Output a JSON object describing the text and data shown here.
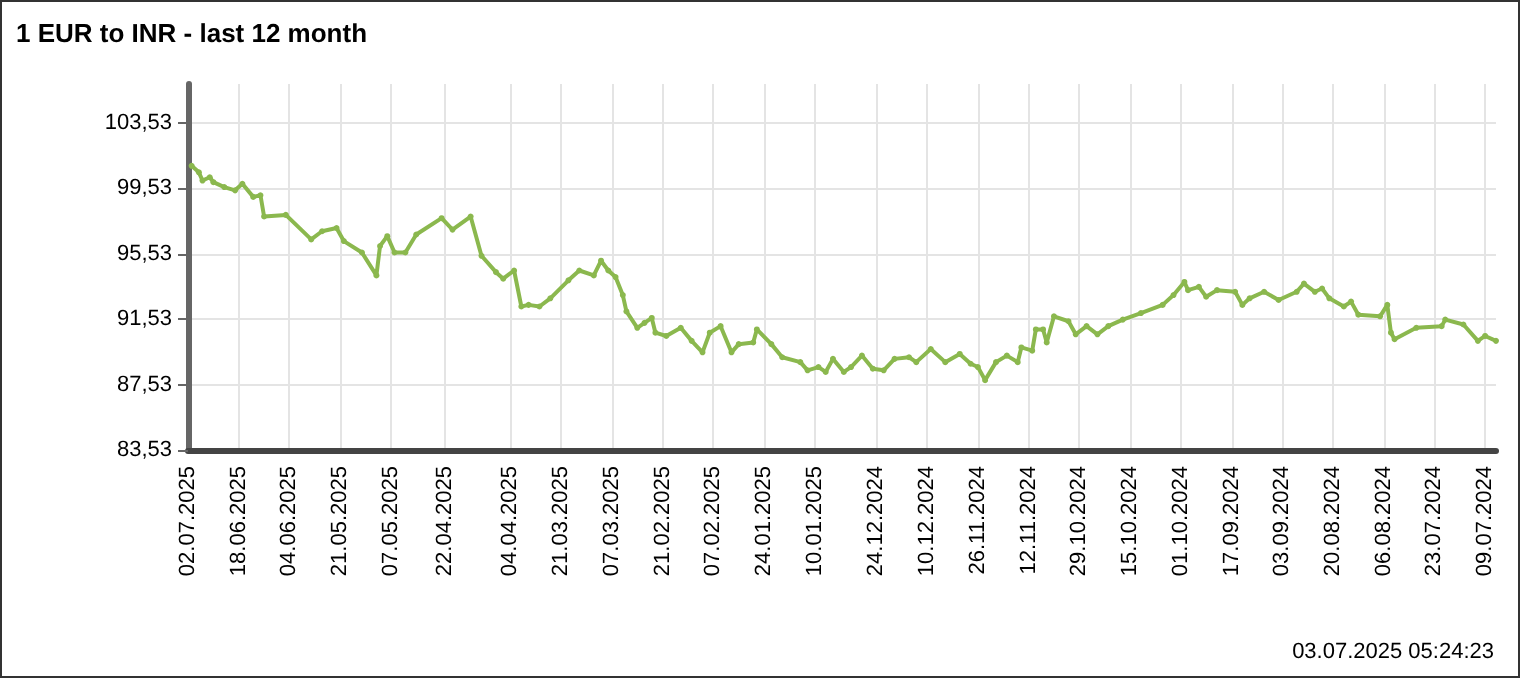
{
  "chart_data": {
    "type": "line",
    "title": "1 EUR to INR - last 12 month",
    "annotations": [
      "03.07.2025 05:24:23"
    ],
    "xlim": [
      "2025-07-02",
      "2024-07-06"
    ],
    "xticks": [
      {
        "value": "2025-07-02",
        "label": "02.07.2025"
      },
      {
        "value": "2025-06-18",
        "label": "18.06.2025"
      },
      {
        "value": "2025-06-04",
        "label": "04.06.2025"
      },
      {
        "value": "2025-05-21",
        "label": "21.05.2025"
      },
      {
        "value": "2025-05-07",
        "label": "07.05.2025"
      },
      {
        "value": "2025-04-22",
        "label": "22.04.2025"
      },
      {
        "value": "2025-04-04",
        "label": "04.04.2025"
      },
      {
        "value": "2025-03-21",
        "label": "21.03.2025"
      },
      {
        "value": "2025-03-07",
        "label": "07.03.2025"
      },
      {
        "value": "2025-02-21",
        "label": "21.02.2025"
      },
      {
        "value": "2025-02-07",
        "label": "07.02.2025"
      },
      {
        "value": "2025-01-24",
        "label": "24.01.2025"
      },
      {
        "value": "2025-01-10",
        "label": "10.01.2025"
      },
      {
        "value": "2024-12-24",
        "label": "24.12.2024"
      },
      {
        "value": "2024-12-10",
        "label": "10.12.2024"
      },
      {
        "value": "2024-11-26",
        "label": "26.11.2024"
      },
      {
        "value": "2024-11-12",
        "label": "12.11.2024"
      },
      {
        "value": "2024-10-29",
        "label": "29.10.2024"
      },
      {
        "value": "2024-10-15",
        "label": "15.10.2024"
      },
      {
        "value": "2024-10-01",
        "label": "01.10.2024"
      },
      {
        "value": "2024-09-17",
        "label": "17.09.2024"
      },
      {
        "value": "2024-09-03",
        "label": "03.09.2024"
      },
      {
        "value": "2024-08-20",
        "label": "20.08.2024"
      },
      {
        "value": "2024-08-06",
        "label": "06.08.2024"
      },
      {
        "value": "2024-07-23",
        "label": "23.07.2024"
      },
      {
        "value": "2024-07-09",
        "label": "09.07.2024"
      }
    ],
    "ylim": [
      83.53,
      105.9
    ],
    "yticks": [
      {
        "value": 83.53,
        "label": "83,53"
      },
      {
        "value": 87.53,
        "label": "87,53"
      },
      {
        "value": 91.53,
        "label": "91,53"
      },
      {
        "value": 95.53,
        "label": "95,53"
      },
      {
        "value": 99.53,
        "label": "99,53"
      },
      {
        "value": 103.53,
        "label": "103,53"
      }
    ],
    "grid": true,
    "marker": "circle",
    "line_style": "solid",
    "x": [
      "2025-07-01",
      "2025-06-29",
      "2025-06-28",
      "2025-06-26",
      "2025-06-25",
      "2025-06-22",
      "2025-06-19",
      "2025-06-17",
      "2025-06-14",
      "2025-06-12",
      "2025-06-11",
      "2025-06-05",
      "2025-05-29",
      "2025-05-26",
      "2025-05-22",
      "2025-05-20",
      "2025-05-15",
      "2025-05-11",
      "2025-05-10",
      "2025-05-08",
      "2025-05-06",
      "2025-05-03",
      "2025-04-30",
      "2025-04-23",
      "2025-04-20",
      "2025-04-15",
      "2025-04-12",
      "2025-04-08",
      "2025-04-06",
      "2025-04-03",
      "2025-04-01",
      "2025-03-30",
      "2025-03-27",
      "2025-03-24",
      "2025-03-19",
      "2025-03-16",
      "2025-03-12",
      "2025-03-10",
      "2025-03-08",
      "2025-03-06",
      "2025-03-04",
      "2025-03-03",
      "2025-02-28",
      "2025-02-26",
      "2025-02-24",
      "2025-02-23",
      "2025-02-20",
      "2025-02-16",
      "2025-02-13",
      "2025-02-10",
      "2025-02-08",
      "2025-02-05",
      "2025-02-02",
      "2025-01-31",
      "2025-01-27",
      "2025-01-26",
      "2025-01-22",
      "2025-01-19",
      "2025-01-14",
      "2025-01-12",
      "2025-01-09",
      "2025-01-07",
      "2025-01-05",
      "2025-01-02",
      "2024-12-31",
      "2024-12-28",
      "2024-12-25",
      "2024-12-22",
      "2024-12-19",
      "2024-12-15",
      "2024-12-13",
      "2024-12-09",
      "2024-12-05",
      "2024-12-01",
      "2024-11-28",
      "2024-11-26",
      "2024-11-24",
      "2024-11-21",
      "2024-11-18",
      "2024-11-15",
      "2024-11-14",
      "2024-11-11",
      "2024-11-10",
      "2024-11-08",
      "2024-11-07",
      "2024-11-05",
      "2024-11-01",
      "2024-10-30",
      "2024-10-27",
      "2024-10-24",
      "2024-10-21",
      "2024-10-17",
      "2024-10-12",
      "2024-10-06",
      "2024-10-03",
      "2024-09-30",
      "2024-09-29",
      "2024-09-26",
      "2024-09-24",
      "2024-09-21",
      "2024-09-16",
      "2024-09-14",
      "2024-09-12",
      "2024-09-08",
      "2024-09-04",
      "2024-08-30",
      "2024-08-28",
      "2024-08-25",
      "2024-08-23",
      "2024-08-21",
      "2024-08-17",
      "2024-08-15",
      "2024-08-13",
      "2024-08-07",
      "2024-08-05",
      "2024-08-04",
      "2024-08-03",
      "2024-07-28",
      "2024-07-21",
      "2024-07-20",
      "2024-07-15",
      "2024-07-11",
      "2024-07-09",
      "2024-07-06"
    ],
    "series": [
      {
        "color": "#8bb84e",
        "values": [
          100.9,
          100.5,
          100.0,
          100.2,
          99.9,
          99.6,
          99.4,
          99.8,
          99.0,
          99.1,
          97.8,
          97.9,
          96.4,
          96.9,
          97.1,
          96.3,
          95.6,
          94.2,
          96.0,
          96.6,
          95.6,
          95.6,
          96.7,
          97.7,
          97.0,
          97.8,
          95.4,
          94.4,
          94.0,
          94.5,
          92.3,
          92.4,
          92.3,
          92.8,
          93.9,
          94.5,
          94.2,
          95.1,
          94.5,
          94.1,
          93.0,
          92.0,
          91.0,
          91.3,
          91.6,
          90.7,
          90.5,
          91.0,
          90.2,
          89.5,
          90.7,
          91.1,
          89.5,
          90.0,
          90.1,
          90.9,
          90.0,
          89.2,
          88.9,
          88.4,
          88.6,
          88.3,
          89.1,
          88.3,
          88.6,
          89.3,
          88.5,
          88.4,
          89.1,
          89.2,
          88.9,
          89.7,
          88.9,
          89.4,
          88.8,
          88.6,
          87.8,
          88.9,
          89.3,
          88.9,
          89.8,
          89.6,
          90.9,
          90.9,
          90.1,
          91.7,
          91.4,
          90.6,
          91.1,
          90.6,
          91.1,
          91.5,
          91.9,
          92.4,
          93.0,
          93.8,
          93.3,
          93.5,
          92.9,
          93.3,
          93.2,
          92.4,
          92.8,
          93.2,
          92.7,
          93.2,
          93.7,
          93.2,
          93.4,
          92.8,
          92.3,
          92.6,
          91.8,
          91.7,
          92.4,
          90.7,
          90.3,
          91.0,
          91.1,
          91.5,
          91.2,
          90.2,
          90.5,
          90.2
        ]
      }
    ]
  }
}
